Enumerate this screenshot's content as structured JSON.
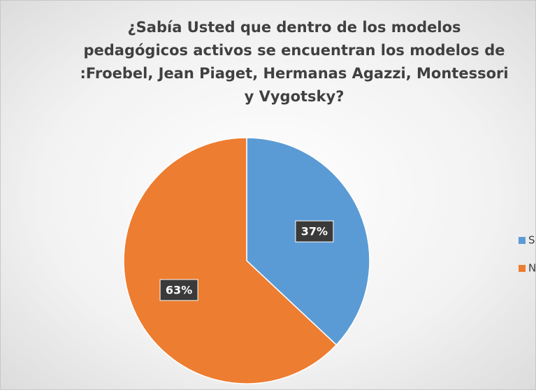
{
  "chart_data": {
    "type": "pie",
    "title": "¿Sabía Usted que dentro de los modelos pedagógicos activos se encuentran los modelos de :Froebel, Jean Piaget, Hermanas Agazzi, Montessori y Vygotsky?",
    "categories": [
      "Si",
      "No"
    ],
    "values": [
      37,
      63
    ],
    "value_labels": [
      "37%",
      "63%"
    ],
    "colors": [
      "#5b9bd5",
      "#ed7d31"
    ],
    "legend": "right"
  }
}
